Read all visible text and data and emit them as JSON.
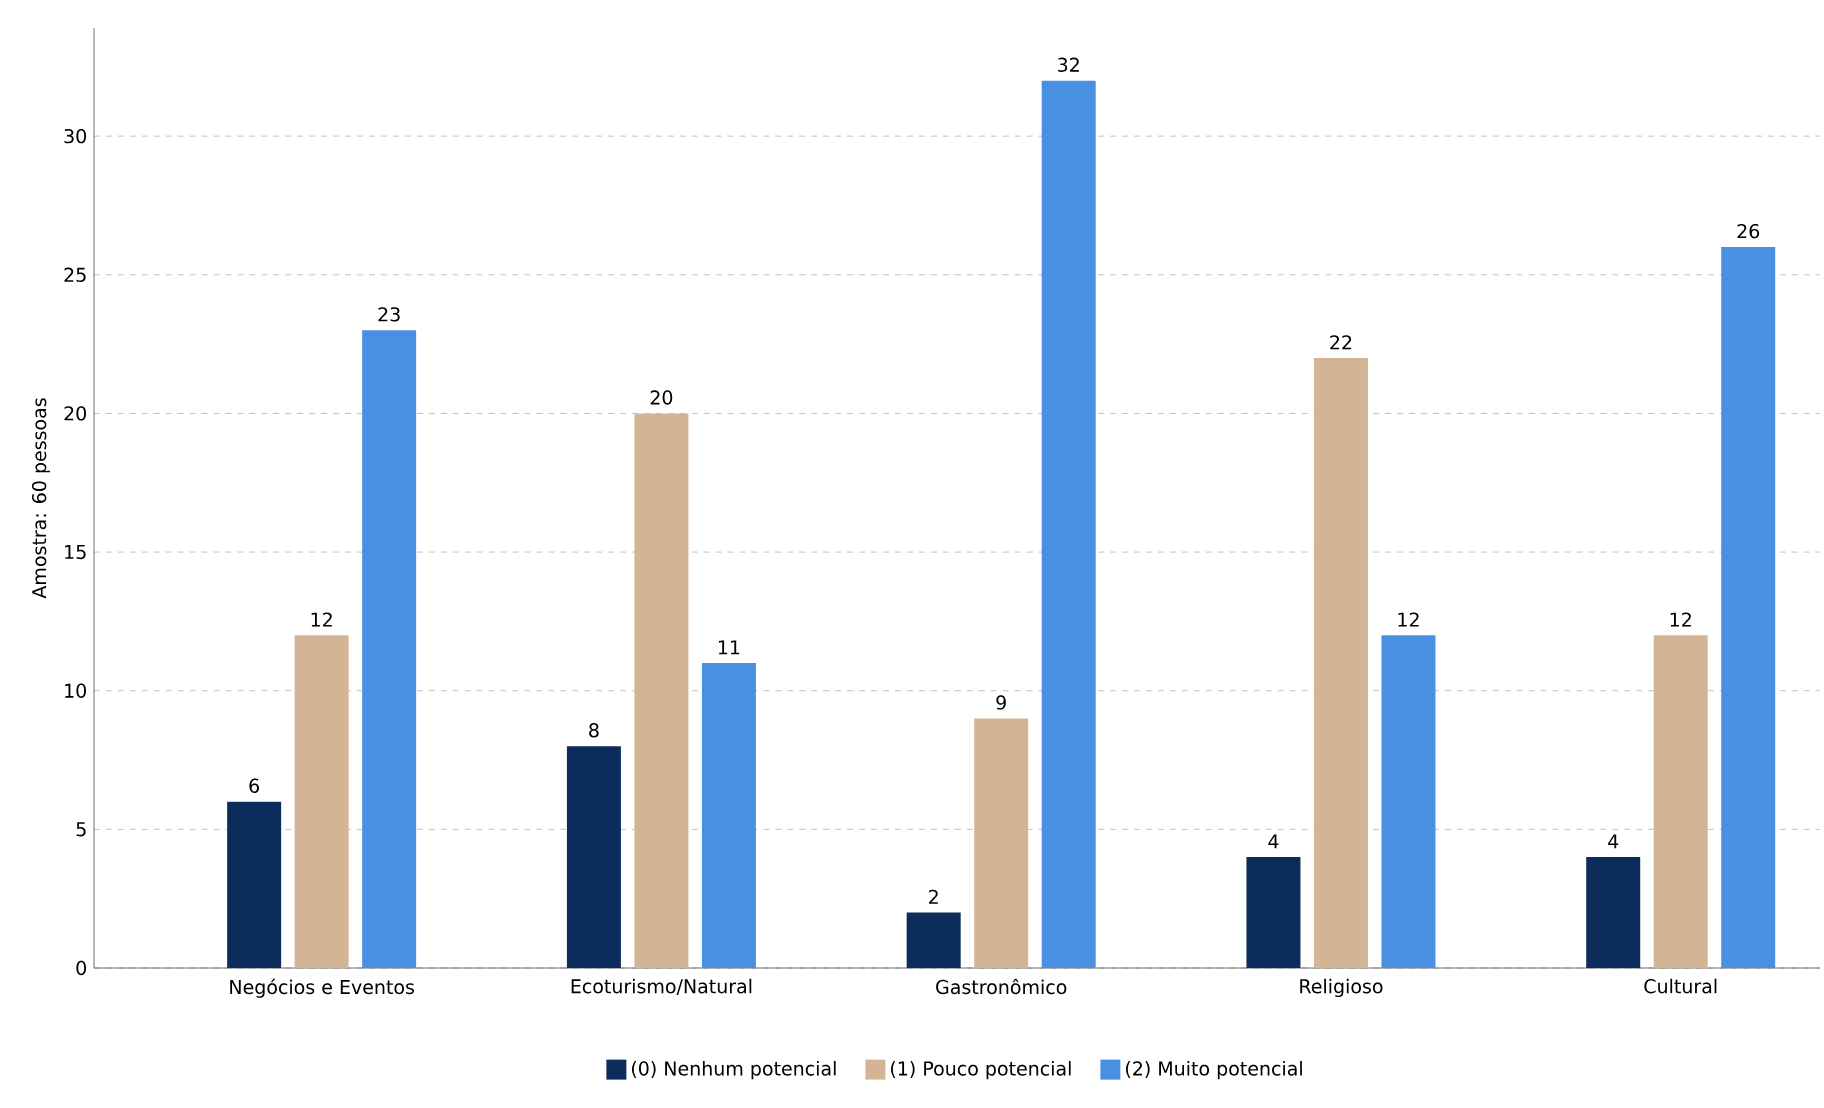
{
  "chart_data": {
    "type": "bar",
    "ylabel": "Amostra: 60 pessoas",
    "categories": [
      "Negócios e Eventos",
      "Ecoturismo/Natural",
      "Gastronômico",
      "Religioso",
      "Cultural"
    ],
    "series": [
      {
        "name": "(0) Nenhum potencial",
        "color": "#0c2c5c",
        "values": [
          6,
          8,
          2,
          4,
          4
        ]
      },
      {
        "name": "(1) Pouco potencial",
        "color": "#d3b595",
        "values": [
          12,
          20,
          9,
          22,
          12
        ]
      },
      {
        "name": "(2) Muito potencial",
        "color": "#4a90e2",
        "values": [
          23,
          11,
          32,
          12,
          26
        ]
      }
    ],
    "ylim": [
      0,
      33.9
    ],
    "yticks": [
      0,
      5,
      10,
      15,
      20,
      25,
      30
    ],
    "grid": "y",
    "legend": "bottom",
    "data_labels": true
  }
}
